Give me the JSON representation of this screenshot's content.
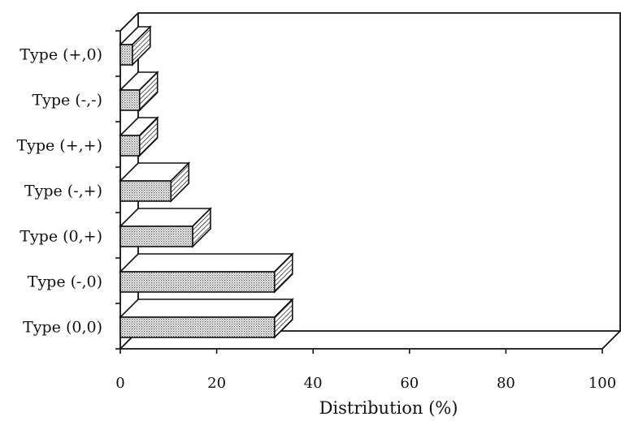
{
  "chart_data": {
    "type": "bar",
    "orientation": "horizontal",
    "style": "3d",
    "categories": [
      "Type (0,0)",
      "Type (-,0)",
      "Type (0,+)",
      "Type (-,+)",
      "Type (+,+)",
      "Type (-,-)",
      "Type (+,0)"
    ],
    "values": [
      32,
      32,
      15,
      10.5,
      4,
      4,
      2.5
    ],
    "xlabel": "Distribution (%)",
    "xlim": [
      0,
      100
    ],
    "xticks": [
      0,
      20,
      40,
      60,
      80,
      100
    ],
    "grid": false,
    "legend": "none",
    "colors": {
      "bar": "#d0d0d0",
      "line": "#111111"
    }
  }
}
